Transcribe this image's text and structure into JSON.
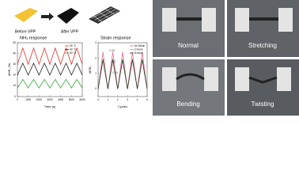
{
  "header": {
    "before_label": "Before VPP",
    "after_label": "After VPP"
  },
  "chart_data": [
    {
      "type": "line",
      "title": "NH₃ response",
      "x_label": "Time (s)",
      "y_label": "ΔR/R₀ (%)",
      "x": [
        0,
        500,
        1000,
        1500,
        2000,
        2500,
        3000,
        3500,
        4000,
        4500,
        5000,
        5500,
        6000
      ],
      "xlim": [
        0,
        6000
      ],
      "xticks": [
        0,
        1000,
        2000,
        3000,
        4000,
        5000,
        6000
      ],
      "ylim": [
        0,
        50
      ],
      "yticks": [
        0,
        10,
        20,
        30,
        40,
        50
      ],
      "series": [
        {
          "name": "25 °C",
          "color": "#e0302a",
          "values": [
            30,
            45,
            30,
            45,
            30,
            45,
            30,
            45,
            30,
            45,
            30,
            45,
            30
          ]
        },
        {
          "name": "40 °C",
          "color": "#222222",
          "values": [
            20,
            31,
            20,
            31,
            20,
            31,
            20,
            31,
            20,
            31,
            20,
            31,
            20
          ]
        },
        {
          "name": "60 °C",
          "color": "#3aa83a",
          "values": [
            8,
            16,
            8,
            16,
            8,
            16,
            8,
            16,
            8,
            16,
            8,
            16,
            8
          ]
        }
      ]
    },
    {
      "type": "line",
      "title": "Strain response",
      "x_label": "Cycles",
      "y_label": "ΔR/R₀",
      "x": [
        0,
        0.5,
        1,
        1.5,
        2,
        2.5,
        3,
        3.5,
        4,
        4.5,
        5
      ],
      "xlim": [
        0,
        5
      ],
      "xticks": [
        0,
        1,
        2,
        3,
        4,
        5
      ],
      "ylim": [
        -0.5,
        3
      ],
      "yticks": [
        0,
        1,
        2,
        3
      ],
      "series": [
        {
          "name": "for 30min",
          "color": "#e86a9a",
          "values": [
            0,
            2.4,
            0,
            2.4,
            0,
            2.4,
            0,
            2.4,
            0,
            2.4,
            0
          ]
        },
        {
          "name": "2 hours",
          "color": "#7ac943",
          "values": [
            0,
            1.97,
            0,
            1.97,
            0,
            1.97,
            0,
            1.97,
            0,
            1.97,
            0
          ]
        },
        {
          "name": "8 hours",
          "color": "#333333",
          "values": [
            0,
            1.89,
            0,
            1.89,
            0,
            1.89,
            0,
            1.89,
            0,
            1.89,
            0
          ]
        }
      ],
      "annotations": [
        "2.40",
        "1.97",
        "1.89"
      ]
    }
  ],
  "photos": {
    "labels": [
      "Normal",
      "Stretching",
      "Bending",
      "Twisting"
    ]
  }
}
